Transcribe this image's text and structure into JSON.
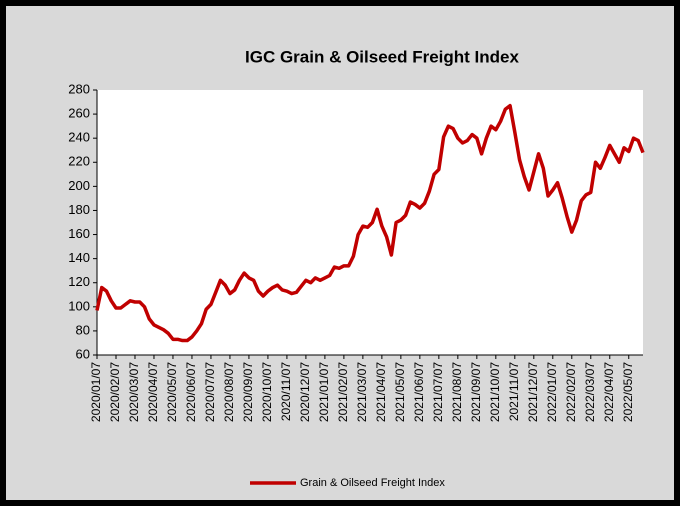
{
  "chart_data": {
    "type": "line",
    "title": "IGC Grain & Oilseed Freight Index",
    "categories": [
      "2020/01/07",
      null,
      null,
      null,
      "2020/02/07",
      null,
      null,
      null,
      "2020/03/07",
      null,
      null,
      null,
      "2020/04/07",
      null,
      null,
      null,
      "2020/05/07",
      null,
      null,
      null,
      "2020/06/07",
      null,
      null,
      null,
      "2020/07/07",
      null,
      null,
      null,
      "2020/08/07",
      null,
      null,
      null,
      "2020/09/07",
      null,
      null,
      null,
      "2020/10/07",
      null,
      null,
      null,
      "2020/11/07",
      null,
      null,
      null,
      "2020/12/07",
      null,
      null,
      null,
      "2021/01/07",
      null,
      null,
      null,
      "2021/02/07",
      null,
      null,
      null,
      "2021/03/07",
      null,
      null,
      null,
      "2021/04/07",
      null,
      null,
      null,
      "2021/05/07",
      null,
      null,
      null,
      "2021/06/07",
      null,
      null,
      null,
      "2021/07/07",
      null,
      null,
      null,
      "2021/08/07",
      null,
      null,
      null,
      "2021/09/07",
      null,
      null,
      null,
      "2021/10/07",
      null,
      null,
      null,
      "2021/11/07",
      null,
      null,
      null,
      "2021/12/07",
      null,
      null,
      null,
      "2022/01/07",
      null,
      null,
      null,
      "2022/02/07",
      null,
      null,
      null,
      "2022/03/07",
      null,
      null,
      null,
      "2022/04/07",
      null,
      null,
      null,
      "2022/05/07",
      null,
      null,
      null
    ],
    "series": [
      {
        "name": "Grain & Oilseed Freight Index",
        "color": "#c00000",
        "values": [
          97,
          116,
          113,
          105,
          99,
          99,
          102,
          105,
          104,
          104,
          100,
          90,
          85,
          83,
          81,
          78,
          73,
          73,
          72,
          72,
          75,
          80,
          86,
          98,
          102,
          112,
          122,
          118,
          111,
          114,
          122,
          128,
          124,
          122,
          113,
          109,
          113,
          116,
          118,
          114,
          113,
          111,
          112,
          117,
          122,
          120,
          124,
          122,
          124,
          126,
          133,
          132,
          134,
          134,
          142,
          160,
          167,
          166,
          170,
          181,
          167,
          158,
          143,
          170,
          172,
          176,
          187,
          185,
          182,
          186,
          196,
          210,
          214,
          241,
          250,
          248,
          240,
          236,
          238,
          243,
          240,
          227,
          240,
          250,
          247,
          254,
          264,
          267,
          245,
          222,
          208,
          197,
          212,
          227,
          215,
          192,
          197,
          203,
          190,
          175,
          162,
          172,
          188,
          193,
          195,
          220,
          215,
          224,
          234,
          227,
          220,
          232,
          229,
          240,
          238,
          228
        ]
      }
    ],
    "ylim": [
      60,
      280
    ],
    "yticks": [
      60,
      80,
      100,
      120,
      140,
      160,
      180,
      200,
      220,
      240,
      260,
      280
    ],
    "legend": "bottom"
  }
}
